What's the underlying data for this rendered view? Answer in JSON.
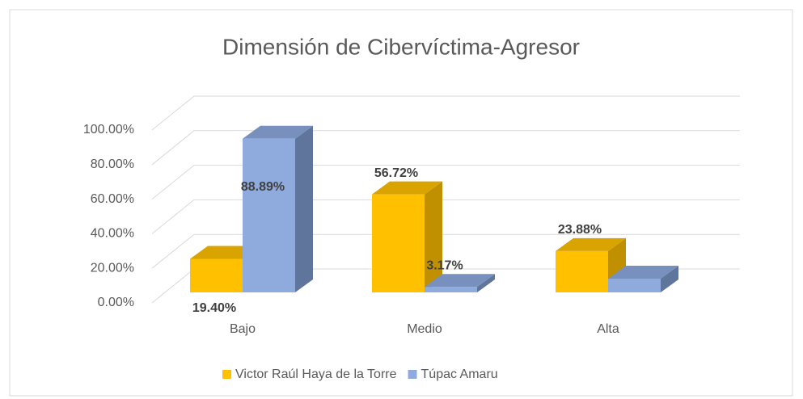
{
  "chart_data": {
    "type": "bar3d",
    "title": "Dimensión de Cibervíctima-Agresor",
    "categories": [
      "Bajo",
      "Medio",
      "Alta"
    ],
    "series": [
      {
        "name": "Victor Raúl Haya de la Torre",
        "color": "#FFC000",
        "side": "#C09000",
        "top": "#D9A300",
        "values": [
          19.4,
          56.72,
          23.88
        ],
        "value_labels": [
          "19.40%",
          "56.72%",
          "23.88%"
        ]
      },
      {
        "name": "Túpac Amaru",
        "color": "#8FAADC",
        "side": "#60759C",
        "top": "#7890BE",
        "values": [
          88.89,
          3.17,
          7.94
        ],
        "value_labels": [
          "88.89%",
          "3.17%",
          null
        ]
      }
    ],
    "ylim": [
      0,
      100
    ],
    "yticks": [
      {
        "value": 0,
        "label": "0.00%"
      },
      {
        "value": 20,
        "label": "20.00%"
      },
      {
        "value": 40,
        "label": "40.00%"
      },
      {
        "value": 60,
        "label": "60.00%"
      },
      {
        "value": 80,
        "label": "80.00%"
      },
      {
        "value": 100,
        "label": "100.00%"
      }
    ],
    "grid": true,
    "legend": "bottom"
  }
}
